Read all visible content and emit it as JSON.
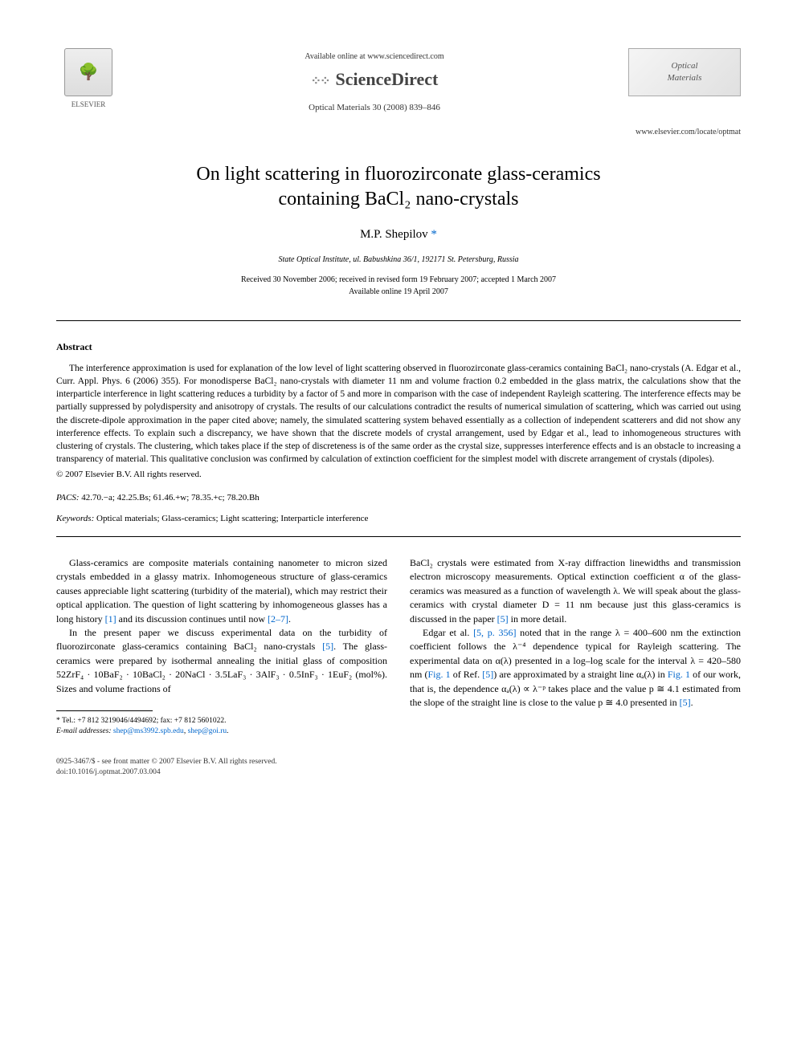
{
  "header": {
    "elsevier_label": "ELSEVIER",
    "available_text": "Available online at www.sciencedirect.com",
    "sciencedirect_label": "ScienceDirect",
    "journal_ref": "Optical Materials 30 (2008) 839–846",
    "journal_logo_line1": "Optical",
    "journal_logo_line2": "Materials",
    "journal_url": "www.elsevier.com/locate/optmat"
  },
  "title_line1": "On light scattering in fluorozirconate glass-ceramics",
  "title_line2": "containing BaCl₂ nano-crystals",
  "author": "M.P. Shepilov",
  "author_marker": "*",
  "affiliation": "State Optical Institute, ul. Babushkina 36/1, 192171 St. Petersburg, Russia",
  "dates_line1": "Received 30 November 2006; received in revised form 19 February 2007; accepted 1 March 2007",
  "dates_line2": "Available online 19 April 2007",
  "abstract": {
    "heading": "Abstract",
    "text": "The interference approximation is used for explanation of the low level of light scattering observed in fluorozirconate glass-ceramics containing BaCl₂ nano-crystals (A. Edgar et al., Curr. Appl. Phys. 6 (2006) 355). For monodisperse BaCl₂ nano-crystals with diameter 11 nm and volume fraction 0.2 embedded in the glass matrix, the calculations show that the interparticle interference in light scattering reduces a turbidity by a factor of 5 and more in comparison with the case of independent Rayleigh scattering. The interference effects may be partially suppressed by polydispersity and anisotropy of crystals. The results of our calculations contradict the results of numerical simulation of scattering, which was carried out using the discrete-dipole approximation in the paper cited above; namely, the simulated scattering system behaved essentially as a collection of independent scatterers and did not show any interference effects. To explain such a discrepancy, we have shown that the discrete models of crystal arrangement, used by Edgar et al., lead to inhomogeneous structures with clustering of crystals. The clustering, which takes place if the step of discreteness is of the same order as the crystal size, suppresses interference effects and is an obstacle to increasing a transparency of material. This qualitative conclusion was confirmed by calculation of extinction coefficient for the simplest model with discrete arrangement of crystals (dipoles).",
    "copyright": "© 2007 Elsevier B.V. All rights reserved."
  },
  "pacs": {
    "label": "PACS:",
    "value": "42.70.−a; 42.25.Bs; 61.46.+w; 78.35.+c; 78.20.Bh"
  },
  "keywords": {
    "label": "Keywords:",
    "value": "Optical materials; Glass-ceramics; Light scattering; Interparticle interference"
  },
  "body": {
    "col1_p1": "Glass-ceramics are composite materials containing nanometer to micron sized crystals embedded in a glassy matrix. Inhomogeneous structure of glass-ceramics causes appreciable light scattering (turbidity of the material), which may restrict their optical application. The question of light scattering by inhomogeneous glasses has a long history ",
    "col1_p1_ref1": "[1]",
    "col1_p1_mid": " and its discussion continues until now ",
    "col1_p1_ref2": "[2–7]",
    "col1_p1_end": ".",
    "col1_p2_a": "In the present paper we discuss experimental data on the turbidity of fluorozirconate glass-ceramics containing BaCl₂ nano-crystals ",
    "col1_p2_ref": "[5]",
    "col1_p2_b": ". The glass-ceramics were prepared by isothermal annealing the initial glass of composition 52ZrF₄ · 10BaF₂ · 10BaCl₂ · 20NaCl · 3.5LaF₃ · 3AlF₃ · 0.5InF₃ · 1EuF₂ (mol%). Sizes and volume fractions of",
    "col2_p1_a": "BaCl₂ crystals were estimated from X-ray diffraction linewidths and transmission electron microscopy measurements. Optical extinction coefficient α of the glass-ceramics was measured as a function of wavelength λ. We will speak about the glass-ceramics with crystal diameter D = 11 nm because just this glass-ceramics is discussed in the paper ",
    "col2_p1_ref": "[5]",
    "col2_p1_b": " in more detail.",
    "col2_p2_a": "Edgar et al. ",
    "col2_p2_ref1": "[5, p. 356]",
    "col2_p2_b": " noted that in the range λ = 400–600 nm the extinction coefficient follows the λ⁻⁴ dependence typical for Rayleigh scattering. The experimental data on α(λ) presented in a log–log scale for the interval λ = 420–580 nm (",
    "col2_p2_fig1": "Fig. 1",
    "col2_p2_c": " of Ref. ",
    "col2_p2_ref2": "[5]",
    "col2_p2_d": ") are approximated by a straight line αₐ(λ) in ",
    "col2_p2_fig2": "Fig. 1",
    "col2_p2_e": " of our work, that is, the dependence αₐ(λ) ∝ λ⁻ᵖ takes place and the value p ≅ 4.1 estimated from the slope of the straight line is close to the value p ≅ 4.0 presented in ",
    "col2_p2_ref3": "[5]",
    "col2_p2_f": "."
  },
  "footnote": {
    "tel": "Tel.: +7 812 3219046/4494692; fax: +7 812 5601022.",
    "email_label": "E-mail addresses:",
    "email1": "shep@ms3992.spb.edu",
    "email_sep": ", ",
    "email2": "shep@goi.ru",
    "email_end": "."
  },
  "footer": {
    "left_line1": "0925-3467/$ - see front matter © 2007 Elsevier B.V. All rights reserved.",
    "left_line2": "doi:10.1016/j.optmat.2007.03.004"
  }
}
